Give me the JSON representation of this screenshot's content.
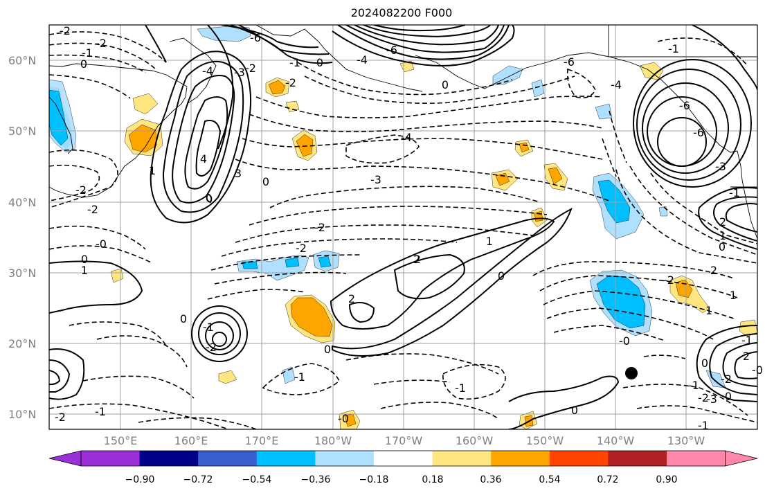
{
  "title": "2024082200 F000",
  "latitude_labels": [
    "60°N",
    "50°N",
    "40°N",
    "30°N",
    "20°N",
    "10°N"
  ],
  "longitude_labels": [
    "150°E",
    "160°E",
    "170°E",
    "180°W",
    "170°W",
    "160°W",
    "150°W",
    "140°W",
    "130°W"
  ],
  "colorbar": {
    "tick_labels": [
      "−0.90",
      "−0.72",
      "−0.54",
      "−0.36",
      "−0.18",
      "0.18",
      "0.36",
      "0.54",
      "0.72",
      "0.90"
    ],
    "colors": [
      "#9b30d9",
      "#00008b",
      "#3a5fcd",
      "#00bfff",
      "#b0e0ff",
      "#ffffff",
      "#ffe680",
      "#ffa500",
      "#ff4500",
      "#b22222",
      "#ff88aa",
      "#ff88aa"
    ]
  },
  "contour_labels": [
    {
      "text": "-2"
    },
    {
      "text": "-2"
    },
    {
      "text": "-1"
    },
    {
      "text": "0"
    },
    {
      "text": "-6"
    },
    {
      "text": "-4"
    },
    {
      "text": "-3"
    },
    {
      "text": "-2"
    },
    {
      "text": "-1"
    },
    {
      "text": "0"
    },
    {
      "text": "-2"
    },
    {
      "text": "-6"
    },
    {
      "text": "-4"
    },
    {
      "text": "0"
    },
    {
      "text": "-6"
    },
    {
      "text": "-4"
    },
    {
      "text": "-1"
    },
    {
      "text": "-6"
    },
    {
      "text": "-3"
    },
    {
      "text": "-4"
    },
    {
      "text": "-3"
    },
    {
      "text": "-2"
    },
    {
      "text": "-6"
    },
    {
      "text": "4"
    },
    {
      "text": "3"
    },
    {
      "text": "1"
    },
    {
      "text": "0"
    },
    {
      "text": "-2"
    },
    {
      "text": "-2"
    },
    {
      "text": "-0"
    },
    {
      "text": "0"
    },
    {
      "text": "1"
    },
    {
      "text": "-2"
    },
    {
      "text": "2"
    },
    {
      "text": "1"
    },
    {
      "text": "2"
    },
    {
      "text": "2"
    },
    {
      "text": "0"
    },
    {
      "text": "-2"
    },
    {
      "text": "-0"
    },
    {
      "text": "1"
    },
    {
      "text": "2"
    },
    {
      "text": "0"
    },
    {
      "text": "-1"
    },
    {
      "text": "0"
    },
    {
      "text": "-2"
    },
    {
      "text": "-1"
    },
    {
      "text": "-1"
    },
    {
      "text": "-1"
    },
    {
      "text": "-1"
    },
    {
      "text": "1"
    },
    {
      "text": "0"
    },
    {
      "text": "-0"
    },
    {
      "text": "2"
    },
    {
      "text": "-2"
    },
    {
      "text": "-3"
    },
    {
      "text": "2"
    },
    {
      "text": "0"
    },
    {
      "text": "-2"
    },
    {
      "text": "0"
    },
    {
      "text": "-1"
    },
    {
      "text": "-0"
    },
    {
      "text": "-2"
    },
    {
      "text": "0"
    },
    {
      "text": "-1"
    },
    {
      "text": "1"
    },
    {
      "text": "-1"
    }
  ]
}
